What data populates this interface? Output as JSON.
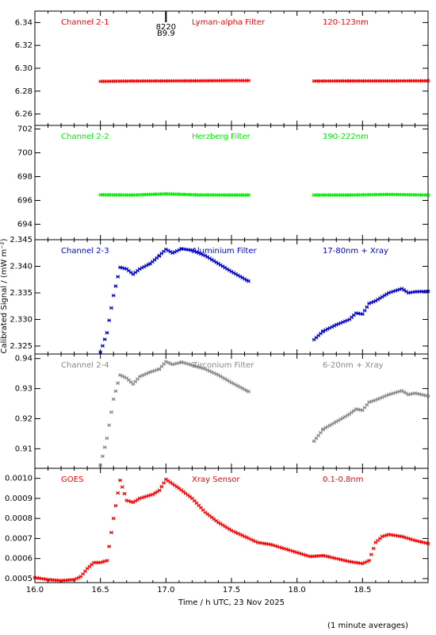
{
  "figure": {
    "ylabel": "Calibrated Signal / (mW m⁻²)",
    "xlabel": "Time / h UTC, 23 Nov 2025",
    "footnote": "(1 minute averages)"
  },
  "chart_data": [
    {
      "type": "scatter",
      "marker": "asterisk",
      "channel": "Channel 2-1",
      "filter": "Lyman-alpha Filter",
      "band": "120-123nm",
      "color": "#ff0000",
      "xlim": [
        16.0,
        19.0
      ],
      "ylim": [
        6.25,
        6.35
      ],
      "yticks": [
        6.26,
        6.28,
        6.3,
        6.32,
        6.34
      ],
      "ytick_labels": [
        "6.26",
        "6.28",
        "6.30",
        "6.32",
        "6.34"
      ],
      "annotation": {
        "x": 17.0,
        "line1": "8220",
        "line2": "B9.9"
      },
      "segments": [
        {
          "x": [
            16.5,
            16.75,
            17.0,
            17.25,
            17.5,
            17.63
          ],
          "y": [
            6.2885,
            6.2888,
            6.2889,
            6.289,
            6.2892,
            6.2892
          ]
        },
        {
          "x": [
            18.13,
            18.4,
            18.7,
            19.0
          ],
          "y": [
            6.2888,
            6.2889,
            6.2889,
            6.289
          ]
        }
      ]
    },
    {
      "type": "scatter",
      "marker": "asterisk",
      "channel": "Channel 2-2",
      "filter": "Herzberg Filter",
      "band": "190-222nm",
      "color": "#00ee00",
      "xlim": [
        16.0,
        19.0
      ],
      "ylim": [
        692.7,
        702.3
      ],
      "yticks": [
        694,
        696,
        698,
        700,
        702
      ],
      "ytick_labels": [
        "694",
        "696",
        "698",
        "700",
        "702"
      ],
      "segments": [
        {
          "x": [
            16.5,
            16.75,
            17.0,
            17.25,
            17.5,
            17.63
          ],
          "y": [
            696.47,
            696.45,
            696.55,
            696.46,
            696.45,
            696.45
          ]
        },
        {
          "x": [
            18.13,
            18.4,
            18.7,
            19.0
          ],
          "y": [
            696.45,
            696.45,
            696.5,
            696.45
          ]
        }
      ]
    },
    {
      "type": "scatter",
      "marker": "asterisk",
      "channel": "Channel 2-3",
      "filter": "Aluminium Filter",
      "band": "17-80nm + Xray",
      "color": "#0000cc",
      "xlim": [
        16.0,
        19.0
      ],
      "ylim": [
        2.3235,
        2.345
      ],
      "yticks": [
        2.325,
        2.33,
        2.335,
        2.34,
        2.345
      ],
      "ytick_labels": [
        "2.325",
        "2.330",
        "2.335",
        "2.340",
        "2.345"
      ],
      "segments": [
        {
          "x": [
            16.5,
            16.55,
            16.6,
            16.65,
            16.7,
            16.75,
            16.8,
            16.88,
            16.95,
            17.0,
            17.05,
            17.12,
            17.2,
            17.3,
            17.4,
            17.5,
            17.63
          ],
          "y": [
            2.3238,
            2.3275,
            2.3345,
            2.3398,
            2.3395,
            2.3385,
            2.3395,
            2.3405,
            2.342,
            2.3432,
            2.3425,
            2.3433,
            2.343,
            2.342,
            2.3405,
            2.339,
            2.3372
          ]
        },
        {
          "x": [
            18.13,
            18.2,
            18.3,
            18.4,
            18.45,
            18.5,
            18.55,
            18.6,
            18.7,
            18.8,
            18.85,
            18.9,
            19.0
          ],
          "y": [
            2.3262,
            2.3278,
            2.329,
            2.33,
            2.3312,
            2.331,
            2.333,
            2.3335,
            2.335,
            2.3358,
            2.335,
            2.3352,
            2.3353
          ]
        }
      ]
    },
    {
      "type": "scatter",
      "marker": "asterisk",
      "channel": "Channel 2-4",
      "filter": "Zirconium Filter",
      "band": "6-20nm + Xray",
      "color": "#888888",
      "xlim": [
        16.0,
        19.0
      ],
      "ylim": [
        0.9035,
        0.9415
      ],
      "yticks": [
        0.91,
        0.92,
        0.93,
        0.94
      ],
      "ytick_labels": [
        "0.91",
        "0.92",
        "0.93",
        "0.94"
      ],
      "segments": [
        {
          "x": [
            16.5,
            16.55,
            16.6,
            16.65,
            16.7,
            16.75,
            16.8,
            16.88,
            16.95,
            17.0,
            17.05,
            17.12,
            17.2,
            17.3,
            17.4,
            17.5,
            17.63
          ],
          "y": [
            0.9045,
            0.9135,
            0.9265,
            0.9345,
            0.9335,
            0.9315,
            0.934,
            0.9355,
            0.9365,
            0.939,
            0.938,
            0.9388,
            0.9378,
            0.9365,
            0.9345,
            0.932,
            0.929
          ]
        },
        {
          "x": [
            18.13,
            18.2,
            18.3,
            18.4,
            18.45,
            18.5,
            18.55,
            18.6,
            18.7,
            18.8,
            18.85,
            18.9,
            19.0
          ],
          "y": [
            0.9125,
            0.9165,
            0.919,
            0.9215,
            0.9232,
            0.9228,
            0.9255,
            0.9262,
            0.928,
            0.9293,
            0.928,
            0.9285,
            0.9275
          ]
        }
      ]
    },
    {
      "type": "scatter",
      "marker": "asterisk",
      "channel": "GOES",
      "filter": "Xray Sensor",
      "band": "0.1-0.8nm",
      "color": "#ff0000",
      "xlim": [
        16.0,
        19.0
      ],
      "ylim": [
        0.00048,
        0.00105
      ],
      "yticks": [
        0.0005,
        0.0006,
        0.0007,
        0.0008,
        0.0009,
        0.001
      ],
      "ytick_labels": [
        "0.0005",
        "0.0006",
        "0.0007",
        "0.0008",
        "0.0009",
        "0.0010"
      ],
      "xticks": [
        16.0,
        16.5,
        17.0,
        17.5,
        18.0,
        18.5
      ],
      "xtick_labels": [
        "16.0",
        "16.5",
        "17.0",
        "17.5",
        "18.0",
        "18.5"
      ],
      "segments": [
        {
          "x": [
            16.0,
            16.1,
            16.2,
            16.3,
            16.35,
            16.4,
            16.45,
            16.5,
            16.55,
            16.6,
            16.65,
            16.7,
            16.75,
            16.8,
            16.85,
            16.9,
            16.95,
            17.0,
            17.1,
            17.2,
            17.3,
            17.4,
            17.5,
            17.6,
            17.7,
            17.8,
            17.9,
            18.0,
            18.1,
            18.2,
            18.3,
            18.4,
            18.5,
            18.55,
            18.6,
            18.65,
            18.7,
            18.8,
            18.9,
            19.0
          ],
          "y": [
            0.000505,
            0.000495,
            0.00049,
            0.000495,
            0.00051,
            0.00055,
            0.00058,
            0.00058,
            0.00059,
            0.0008,
            0.00099,
            0.00089,
            0.00088,
            0.0009,
            0.00091,
            0.00092,
            0.00094,
            0.000995,
            0.00095,
            0.0009,
            0.00083,
            0.00078,
            0.00074,
            0.00071,
            0.00068,
            0.00067,
            0.00065,
            0.00063,
            0.00061,
            0.000615,
            0.0006,
            0.000585,
            0.000575,
            0.00059,
            0.00068,
            0.00071,
            0.00072,
            0.00071,
            0.00069,
            0.000675
          ]
        }
      ]
    }
  ]
}
